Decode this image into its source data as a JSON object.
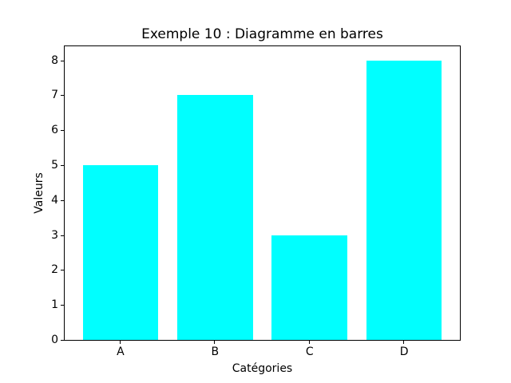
{
  "chart_data": {
    "type": "bar",
    "title": "Exemple 10 : Diagramme en barres",
    "xlabel": "Catégories",
    "ylabel": "Valeurs",
    "categories": [
      "A",
      "B",
      "C",
      "D"
    ],
    "values": [
      5,
      7,
      3,
      8
    ],
    "bar_color": "#00ffff",
    "bar_width": 0.8,
    "xlim": [
      -0.59,
      3.59
    ],
    "ylim": [
      0,
      8.4
    ],
    "yticks": [
      0,
      1,
      2,
      3,
      4,
      5,
      6,
      7,
      8
    ],
    "grid": false,
    "legend_position": "none",
    "background_color": "#ffffff",
    "spine_color": "#000000",
    "text_color": "#000000"
  }
}
